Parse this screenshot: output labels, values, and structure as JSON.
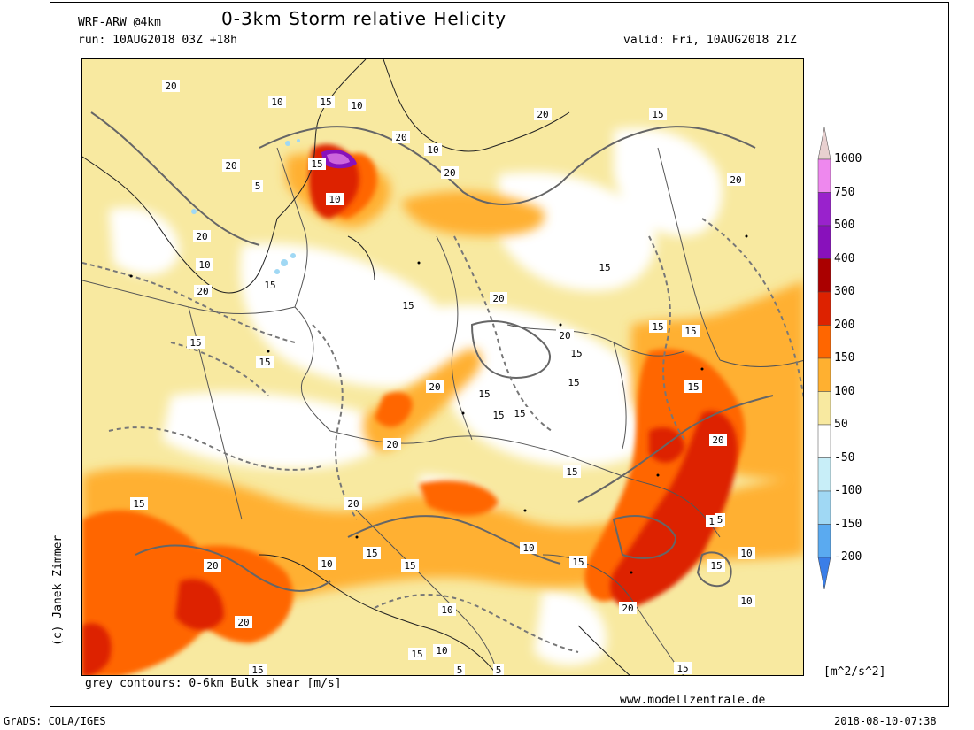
{
  "header": {
    "model": "WRF-ARW @4km",
    "title": "0-3km Storm relative Helicity",
    "run": "run: 10AUG2018 03Z +18h",
    "valid": "valid: Fri, 10AUG2018 21Z"
  },
  "footer": {
    "contours_note": "grey contours: 0-6km Bulk shear [m/s]",
    "website": "www.modellzentrale.de",
    "grads": "GrADS: COLA/IGES",
    "timestamp": "2018-08-10-07:38",
    "author": "(c) Janek Zimmer"
  },
  "legend": {
    "unit": "[m^2/s^2]",
    "levels": [
      {
        "label": "1000",
        "color": "#e8d0d0"
      },
      {
        "label": "750",
        "color": "#ee88ee"
      },
      {
        "label": "500",
        "color": "#9922cc"
      },
      {
        "label": "400",
        "color": "#8811bb"
      },
      {
        "label": "300",
        "color": "#aa0000"
      },
      {
        "label": "200",
        "color": "#dd2200"
      },
      {
        "label": "150",
        "color": "#ff6600"
      },
      {
        "label": "100",
        "color": "#ffb030"
      },
      {
        "label": "50",
        "color": "#f8e9a0"
      },
      {
        "label": "-50",
        "color": "#ffffff"
      },
      {
        "label": "-100",
        "color": "#c8eef8"
      },
      {
        "label": "-150",
        "color": "#a0d8f4"
      },
      {
        "label": "-200",
        "color": "#5aaaf0"
      }
    ],
    "bottom_color": "#3a7ee8"
  },
  "map": {
    "contour_labels": [
      "20",
      "10",
      "15",
      "10",
      "20",
      "15",
      "10",
      "20",
      "5",
      "20",
      "10",
      "15",
      "20",
      "10",
      "20",
      "15",
      "20",
      "20",
      "15",
      "15",
      "15",
      "20",
      "15",
      "15",
      "15",
      "15",
      "15",
      "20",
      "15",
      "15",
      "20",
      "15",
      "20",
      "15",
      "20",
      "15",
      "15",
      "15",
      "20",
      "15",
      "5",
      "10",
      "20",
      "15",
      "10",
      "15",
      "10",
      "15",
      "5",
      "15",
      "20",
      "10",
      "15",
      "20",
      "10",
      "5",
      "15",
      "10"
    ]
  }
}
